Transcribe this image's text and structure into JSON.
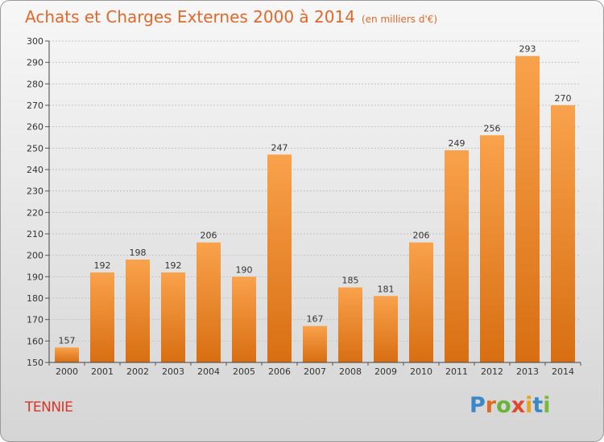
{
  "header": {
    "title": "Achats et Charges Externes 2000 à 2014",
    "subtitle": "(en milliers d'€)"
  },
  "footer": {
    "commune": "TENNIE",
    "brand": "Proxiti"
  },
  "colors": {
    "bar_light": "#f9a24c",
    "bar_dark": "#d86e12",
    "title": "#e0682a",
    "commune": "#d7352a",
    "logo_letters": [
      "#3a88c8",
      "#e06a22",
      "#6bb23a",
      "#e0482a",
      "#e6a51a",
      "#3a88c8",
      "#7ab83a"
    ]
  },
  "chart_data": {
    "type": "bar",
    "categories": [
      "2000",
      "2001",
      "2002",
      "2003",
      "2004",
      "2005",
      "2006",
      "2007",
      "2008",
      "2009",
      "2010",
      "2011",
      "2012",
      "2013",
      "2014"
    ],
    "values": [
      157,
      192,
      198,
      192,
      206,
      190,
      247,
      167,
      185,
      181,
      206,
      249,
      256,
      293,
      270
    ],
    "ylim": [
      150,
      300
    ],
    "yticks": [
      150,
      160,
      170,
      180,
      190,
      200,
      210,
      220,
      230,
      240,
      250,
      260,
      270,
      280,
      290,
      300
    ],
    "grid": true,
    "data_labels": true
  }
}
